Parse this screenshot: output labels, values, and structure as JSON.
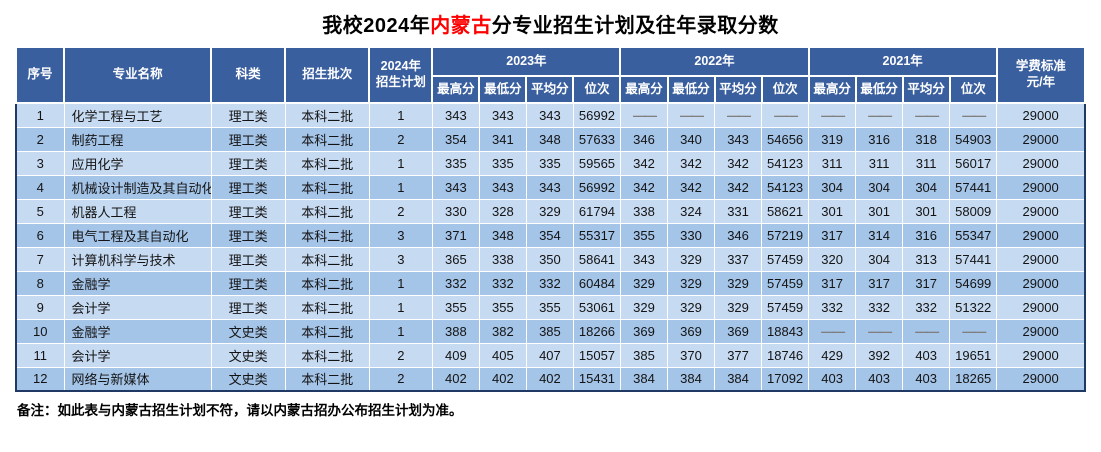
{
  "title": {
    "part1": "我校2024年",
    "highlight": "内蒙古",
    "part2": "分专业招生计划及往年录取分数"
  },
  "columns": {
    "no": "序号",
    "major": "专业名称",
    "category": "科类",
    "batch": "招生批次",
    "plan_line1": "2024年",
    "plan_line2": "招生计划",
    "tuition_line1": "学费标准",
    "tuition_line2": "元/年"
  },
  "year_groups": [
    "2023年",
    "2022年",
    "2021年"
  ],
  "score_headers": [
    "最高分",
    "最低分",
    "平均分",
    "位次"
  ],
  "rows": [
    {
      "no": "1",
      "major": "化学工程与工艺",
      "category": "理工类",
      "batch": "本科二批",
      "plan": "1",
      "y2023": [
        "343",
        "343",
        "343",
        "56992"
      ],
      "y2022": [
        "——",
        "——",
        "——",
        "——"
      ],
      "y2021": [
        "——",
        "——",
        "——",
        "——"
      ],
      "tuition": "29000"
    },
    {
      "no": "2",
      "major": "制药工程",
      "category": "理工类",
      "batch": "本科二批",
      "plan": "2",
      "y2023": [
        "354",
        "341",
        "348",
        "57633"
      ],
      "y2022": [
        "346",
        "340",
        "343",
        "54656"
      ],
      "y2021": [
        "319",
        "316",
        "318",
        "54903"
      ],
      "tuition": "29000"
    },
    {
      "no": "3",
      "major": "应用化学",
      "category": "理工类",
      "batch": "本科二批",
      "plan": "1",
      "y2023": [
        "335",
        "335",
        "335",
        "59565"
      ],
      "y2022": [
        "342",
        "342",
        "342",
        "54123"
      ],
      "y2021": [
        "311",
        "311",
        "311",
        "56017"
      ],
      "tuition": "29000"
    },
    {
      "no": "4",
      "major": "机械设计制造及其自动化",
      "category": "理工类",
      "batch": "本科二批",
      "plan": "1",
      "y2023": [
        "343",
        "343",
        "343",
        "56992"
      ],
      "y2022": [
        "342",
        "342",
        "342",
        "54123"
      ],
      "y2021": [
        "304",
        "304",
        "304",
        "57441"
      ],
      "tuition": "29000"
    },
    {
      "no": "5",
      "major": "机器人工程",
      "category": "理工类",
      "batch": "本科二批",
      "plan": "2",
      "y2023": [
        "330",
        "328",
        "329",
        "61794"
      ],
      "y2022": [
        "338",
        "324",
        "331",
        "58621"
      ],
      "y2021": [
        "301",
        "301",
        "301",
        "58009"
      ],
      "tuition": "29000"
    },
    {
      "no": "6",
      "major": "电气工程及其自动化",
      "category": "理工类",
      "batch": "本科二批",
      "plan": "3",
      "y2023": [
        "371",
        "348",
        "354",
        "55317"
      ],
      "y2022": [
        "355",
        "330",
        "346",
        "57219"
      ],
      "y2021": [
        "317",
        "314",
        "316",
        "55347"
      ],
      "tuition": "29000"
    },
    {
      "no": "7",
      "major": "计算机科学与技术",
      "category": "理工类",
      "batch": "本科二批",
      "plan": "3",
      "y2023": [
        "365",
        "338",
        "350",
        "58641"
      ],
      "y2022": [
        "343",
        "329",
        "337",
        "57459"
      ],
      "y2021": [
        "320",
        "304",
        "313",
        "57441"
      ],
      "tuition": "29000"
    },
    {
      "no": "8",
      "major": "金融学",
      "category": "理工类",
      "batch": "本科二批",
      "plan": "1",
      "y2023": [
        "332",
        "332",
        "332",
        "60484"
      ],
      "y2022": [
        "329",
        "329",
        "329",
        "57459"
      ],
      "y2021": [
        "317",
        "317",
        "317",
        "54699"
      ],
      "tuition": "29000"
    },
    {
      "no": "9",
      "major": "会计学",
      "category": "理工类",
      "batch": "本科二批",
      "plan": "1",
      "y2023": [
        "355",
        "355",
        "355",
        "53061"
      ],
      "y2022": [
        "329",
        "329",
        "329",
        "57459"
      ],
      "y2021": [
        "332",
        "332",
        "332",
        "51322"
      ],
      "tuition": "29000"
    },
    {
      "no": "10",
      "major": "金融学",
      "category": "文史类",
      "batch": "本科二批",
      "plan": "1",
      "y2023": [
        "388",
        "382",
        "385",
        "18266"
      ],
      "y2022": [
        "369",
        "369",
        "369",
        "18843"
      ],
      "y2021": [
        "——",
        "——",
        "——",
        "——"
      ],
      "tuition": "29000"
    },
    {
      "no": "11",
      "major": "会计学",
      "category": "文史类",
      "batch": "本科二批",
      "plan": "2",
      "y2023": [
        "409",
        "405",
        "407",
        "15057"
      ],
      "y2022": [
        "385",
        "370",
        "377",
        "18746"
      ],
      "y2021": [
        "429",
        "392",
        "403",
        "19651"
      ],
      "tuition": "29000"
    },
    {
      "no": "12",
      "major": "网络与新媒体",
      "category": "文史类",
      "batch": "本科二批",
      "plan": "2",
      "y2023": [
        "402",
        "402",
        "402",
        "15431"
      ],
      "y2022": [
        "384",
        "384",
        "384",
        "17092"
      ],
      "y2021": [
        "403",
        "403",
        "403",
        "18265"
      ],
      "tuition": "29000"
    }
  ],
  "note": "备注：如此表与内蒙古招生计划不符，请以内蒙古招办公布招生计划为准。",
  "colors": {
    "header_bg": "#3A5F9E",
    "row_light": "#C6DAF1",
    "row_dark": "#A4C4E8",
    "outer_border": "#1F3864",
    "title_highlight": "#FF0000",
    "dash": "#7F7F7F"
  }
}
